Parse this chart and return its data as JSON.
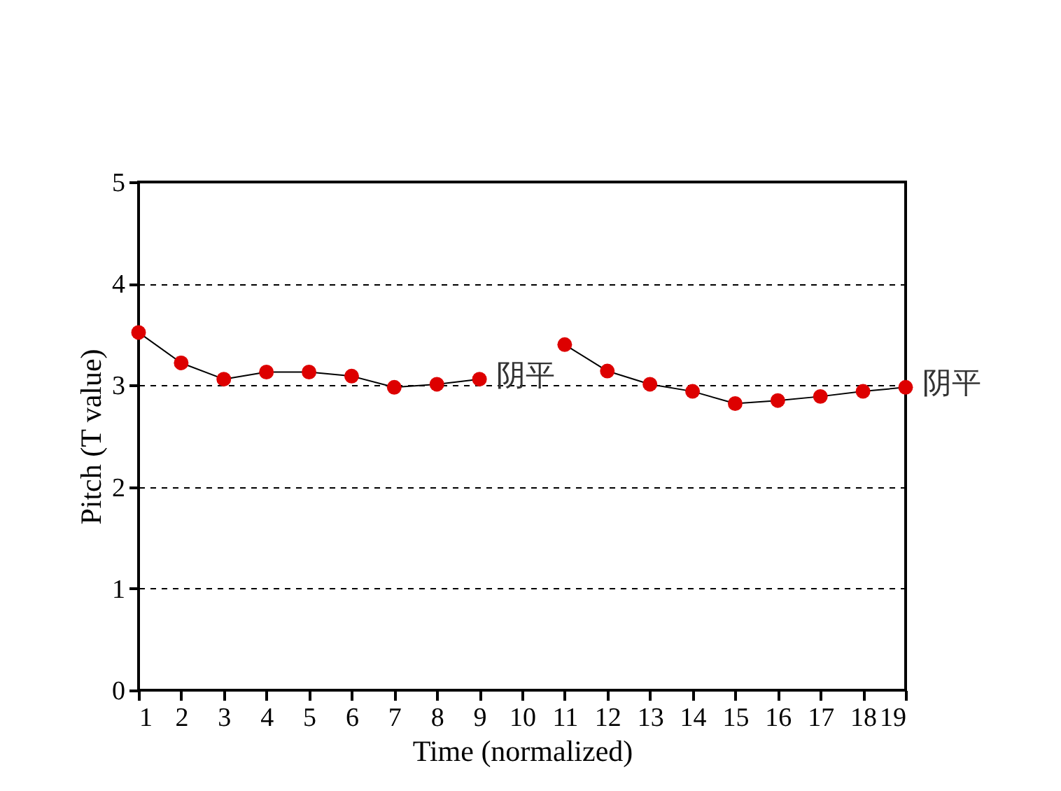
{
  "chart_data": {
    "type": "line",
    "xlabel": "Time (normalized)",
    "ylabel": "Pitch (T value)",
    "series": [
      {
        "name": "阴平",
        "color": "#dd0000",
        "x": [
          1,
          2,
          3,
          4,
          5,
          6,
          7,
          8,
          9
        ],
        "values": [
          3.52,
          3.22,
          3.06,
          3.13,
          3.13,
          3.09,
          2.98,
          3.01,
          3.06
        ]
      },
      {
        "name": "阴平",
        "color": "#dd0000",
        "x": [
          11,
          12,
          13,
          14,
          15,
          16,
          17,
          18,
          19
        ],
        "values": [
          3.4,
          3.14,
          3.01,
          2.94,
          2.82,
          2.85,
          2.89,
          2.94,
          2.98
        ]
      }
    ],
    "xlim": [
      1,
      19
    ],
    "xticks": [
      1,
      2,
      3,
      4,
      5,
      6,
      7,
      8,
      9,
      10,
      11,
      12,
      13,
      14,
      15,
      16,
      17,
      18,
      19
    ],
    "ylim": [
      0,
      5
    ],
    "yticks": [
      0,
      1,
      2,
      3,
      4,
      5
    ],
    "grid": "y",
    "marker": "circle",
    "line_style": "solid"
  }
}
